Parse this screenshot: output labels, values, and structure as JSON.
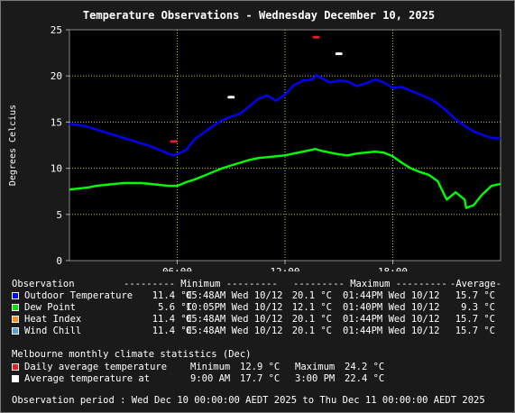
{
  "title": "Temperature Observations - Wednesday December 10, 2025",
  "chart_data": {
    "type": "line",
    "title": "Temperature Observations - Wednesday December 10, 2025",
    "xlabel": "",
    "ylabel": "Degrees Celcius",
    "xlim": [
      0,
      24
    ],
    "ylim": [
      0,
      25
    ],
    "x_ticks": [
      {
        "v": 6,
        "label": "06:00"
      },
      {
        "v": 12,
        "label": "12:00"
      },
      {
        "v": 18,
        "label": "18:00"
      }
    ],
    "y_ticks": [
      0,
      5,
      10,
      15,
      20,
      25
    ],
    "grid": true,
    "series": [
      {
        "name": "Outdoor Temperature",
        "color": "#0000ff",
        "x": [
          0,
          0.5,
          1,
          1.5,
          2,
          2.5,
          3,
          3.5,
          4,
          4.5,
          5,
          5.5,
          5.8,
          6.2,
          6.5,
          7,
          7.5,
          8,
          8.5,
          9,
          9.5,
          10,
          10.5,
          11,
          11.5,
          12,
          12.5,
          13,
          13.5,
          13.73,
          14,
          14.5,
          15,
          15.5,
          16,
          16.5,
          17,
          17.5,
          18,
          18.5,
          19,
          19.5,
          20,
          20.5,
          21,
          21.5,
          22,
          22.5,
          23,
          23.5,
          24
        ],
        "y": [
          14.8,
          14.7,
          14.5,
          14.2,
          13.9,
          13.6,
          13.3,
          13.0,
          12.7,
          12.4,
          12.0,
          11.6,
          11.4,
          11.7,
          12.0,
          13.2,
          13.9,
          14.6,
          15.2,
          15.6,
          15.9,
          16.7,
          17.5,
          17.9,
          17.3,
          18.0,
          19.0,
          19.5,
          19.6,
          20.1,
          19.8,
          19.3,
          19.5,
          19.4,
          18.9,
          19.2,
          19.6,
          19.3,
          18.7,
          18.8,
          18.4,
          18.0,
          17.6,
          17.0,
          16.2,
          15.3,
          14.6,
          14.0,
          13.6,
          13.3,
          13.2
        ]
      },
      {
        "name": "Dew Point",
        "color": "#00ff00",
        "x": [
          0,
          0.5,
          1,
          1.5,
          2,
          2.5,
          3,
          3.5,
          4,
          4.5,
          5,
          5.5,
          6,
          6.5,
          7,
          7.5,
          8,
          8.5,
          9,
          9.5,
          10,
          10.5,
          11,
          11.5,
          12,
          12.5,
          13,
          13.5,
          13.67,
          14,
          14.5,
          15,
          15.5,
          16,
          16.5,
          17,
          17.5,
          18,
          18.5,
          19,
          19.5,
          20,
          20.5,
          21,
          21.5,
          22,
          22.08,
          22.5,
          23,
          23.5,
          24
        ],
        "y": [
          7.7,
          7.8,
          7.9,
          8.1,
          8.2,
          8.3,
          8.4,
          8.4,
          8.4,
          8.3,
          8.2,
          8.1,
          8.1,
          8.5,
          8.8,
          9.2,
          9.6,
          10.0,
          10.3,
          10.6,
          10.9,
          11.1,
          11.2,
          11.3,
          11.4,
          11.6,
          11.8,
          12.0,
          12.1,
          11.9,
          11.7,
          11.5,
          11.4,
          11.6,
          11.7,
          11.8,
          11.7,
          11.3,
          10.6,
          10.0,
          9.6,
          9.3,
          8.6,
          6.6,
          7.4,
          6.6,
          5.7,
          6.0,
          7.2,
          8.1,
          8.3
        ]
      },
      {
        "name": "Heat Index",
        "color": "#ff8c28",
        "x": [],
        "y": []
      },
      {
        "name": "Wind Chill",
        "color": "#50a0e0",
        "x": [],
        "y": []
      },
      {
        "name": "Daily average temperature",
        "color": "#e02020",
        "markers": [
          {
            "x": 5.8,
            "y": 12.9
          },
          {
            "x": 13.73,
            "y": 24.2
          }
        ]
      },
      {
        "name": "Average temperature at",
        "color": "#ffffff",
        "markers": [
          {
            "x": 9.0,
            "y": 17.7
          },
          {
            "x": 15.0,
            "y": 22.4
          }
        ]
      }
    ]
  },
  "legend": {
    "header": {
      "observation": "Observation",
      "minimum": "--------- Minimum ---------",
      "maximum": "--------- Maximum ---------",
      "average": "-Average-"
    },
    "rows": [
      {
        "label": "Outdoor Temperature",
        "color": "#0000ff",
        "min_val": "11.4 °C",
        "min_time": "05:48AM Wed 10/12",
        "max_val": "20.1 °C",
        "max_time": "01:44PM Wed 10/12",
        "avg": "15.7 °C"
      },
      {
        "label": "Dew Point",
        "color": "#00e000",
        "min_val": "5.6 °C",
        "min_time": "10:05PM Wed 10/12",
        "max_val": "12.1 °C",
        "max_time": "01:40PM Wed 10/12",
        "avg": "9.3 °C"
      },
      {
        "label": "Heat Index",
        "color": "#ff8c28",
        "min_val": "11.4 °C",
        "min_time": "05:48AM Wed 10/12",
        "max_val": "20.1 °C",
        "max_time": "01:44PM Wed 10/12",
        "avg": "15.7 °C"
      },
      {
        "label": "Wind Chill",
        "color": "#50a0e0",
        "min_val": "11.4 °C",
        "min_time": "05:48AM Wed 10/12",
        "max_val": "20.1 °C",
        "max_time": "01:44PM Wed 10/12",
        "avg": "15.7 °C"
      }
    ]
  },
  "climate": {
    "heading": "Melbourne monthly climate statistics (Dec)",
    "daily": {
      "label": "Daily average temperature",
      "color": "#e02020",
      "min_label": "Minimum",
      "min_val": "12.9 °C",
      "max_label": "Maximum",
      "max_val": "24.2 °C"
    },
    "avgat": {
      "label": "Average temperature at",
      "color": "#ffffff",
      "t1": "9:00 AM",
      "v1": "17.7 °C",
      "t2": "3:00 PM",
      "v2": "22.4 °C"
    }
  },
  "period": "Observation period : Wed Dec 10 00:00:00 AEDT 2025 to Thu Dec 11 00:00:00 AEDT 2025"
}
